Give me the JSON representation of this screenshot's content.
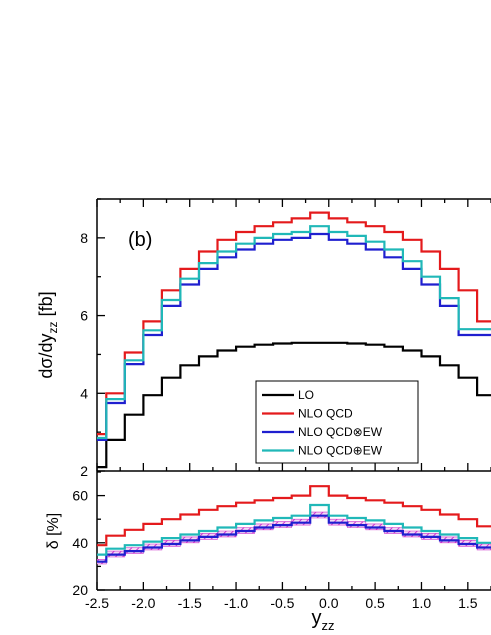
{
  "chart_data": [
    {
      "panel": "top",
      "type": "line",
      "step": true,
      "label": "(b)",
      "xlabel": "y",
      "xlabel_sub": "zz",
      "ylabel": "dσ/dy",
      "ylabel_sub": "zz",
      "ylabel_unit": "[fb]",
      "xlim": [
        -2.5,
        1.75
      ],
      "ylim": [
        2,
        9
      ],
      "xticks": [
        -2.5,
        -2.0,
        -1.5,
        -1.0,
        -0.5,
        0.0,
        0.5,
        1.0,
        1.5
      ],
      "xtick_labels": [
        "-2.5",
        "-2.0",
        "-1.5",
        "-1.0",
        "-0.5",
        "0.0",
        "0.5",
        "1.0",
        "1.5"
      ],
      "yticks": [
        2,
        4,
        6,
        8
      ],
      "ytick_labels": [
        "2",
        "4",
        "6",
        "8"
      ],
      "legend_position": "lower-center",
      "bin_edges": [
        -2.5,
        -2.4,
        -2.2,
        -2.0,
        -1.8,
        -1.6,
        -1.4,
        -1.2,
        -1.0,
        -0.8,
        -0.6,
        -0.4,
        -0.2,
        0.0,
        0.2,
        0.4,
        0.6,
        0.8,
        1.0,
        1.2,
        1.4,
        1.6,
        1.75
      ],
      "series": [
        {
          "name": "LO",
          "color": "#000000",
          "values": [
            2.1,
            2.8,
            3.45,
            3.95,
            4.4,
            4.72,
            4.95,
            5.1,
            5.2,
            5.25,
            5.28,
            5.3,
            5.3,
            5.3,
            5.28,
            5.25,
            5.2,
            5.1,
            4.95,
            4.72,
            4.4,
            3.95
          ]
        },
        {
          "name": "NLO QCD",
          "color": "#e41a1c",
          "values": [
            2.95,
            4.0,
            5.05,
            5.85,
            6.65,
            7.2,
            7.65,
            7.95,
            8.15,
            8.3,
            8.4,
            8.5,
            8.65,
            8.5,
            8.4,
            8.3,
            8.15,
            7.95,
            7.65,
            7.2,
            6.65,
            5.85
          ]
        },
        {
          "name": "NLO QCD⊗EW",
          "color": "#1f1fcf",
          "values": [
            2.8,
            3.75,
            4.75,
            5.5,
            6.25,
            6.8,
            7.2,
            7.5,
            7.7,
            7.85,
            7.95,
            8.0,
            8.1,
            7.95,
            7.85,
            7.7,
            7.5,
            7.2,
            6.8,
            6.25,
            5.5,
            5.5
          ]
        },
        {
          "name": "NLO QCD⊕EW",
          "color": "#20b8b8",
          "values": [
            2.85,
            3.85,
            4.85,
            5.62,
            6.4,
            6.95,
            7.35,
            7.65,
            7.85,
            8.0,
            8.1,
            8.15,
            8.3,
            8.15,
            8.05,
            7.9,
            7.7,
            7.4,
            7.0,
            6.45,
            5.65,
            5.65
          ]
        }
      ]
    },
    {
      "panel": "bottom",
      "type": "line",
      "step": true,
      "xlabel": "y",
      "xlabel_sub": "zz",
      "ylabel": "δ [%]",
      "xlim": [
        -2.5,
        1.75
      ],
      "ylim": [
        20,
        70
      ],
      "xticks": [
        -2.5,
        -2.0,
        -1.5,
        -1.0,
        -0.5,
        0.0,
        0.5,
        1.0,
        1.5
      ],
      "xtick_labels": [
        "-2.5",
        "-2.0",
        "-1.5",
        "-1.0",
        "-0.5",
        "0.0",
        "0.5",
        "1.0",
        "1.5"
      ],
      "yticks": [
        20,
        40,
        60
      ],
      "ytick_labels": [
        "20",
        "40",
        "60"
      ],
      "bin_edges": [
        -2.5,
        -2.4,
        -2.2,
        -2.0,
        -1.8,
        -1.6,
        -1.4,
        -1.2,
        -1.0,
        -0.8,
        -0.6,
        -0.4,
        -0.2,
        0.0,
        0.2,
        0.4,
        0.6,
        0.8,
        1.0,
        1.2,
        1.4,
        1.6,
        1.75
      ],
      "band": {
        "color": "#cc33cc",
        "lower": [
          31,
          34,
          35.5,
          37,
          38.5,
          40,
          41.5,
          42.5,
          44,
          45.5,
          46.5,
          47.5,
          50.5,
          47.5,
          46.5,
          45.5,
          44,
          42.5,
          41.5,
          40,
          38.5,
          37
        ],
        "upper": [
          33,
          36.5,
          38,
          39.5,
          41,
          42.5,
          44,
          45,
          46.5,
          48,
          49,
          50,
          53,
          50,
          49,
          48,
          46.5,
          45,
          44,
          42.5,
          41,
          39.5
        ]
      },
      "series": [
        {
          "name": "NLO QCD",
          "color": "#e41a1c",
          "values": [
            39,
            43,
            45.5,
            48,
            50,
            52,
            54,
            55.5,
            57,
            58,
            59,
            60,
            64,
            60,
            59,
            58,
            57,
            55.5,
            54,
            52,
            50,
            47
          ]
        },
        {
          "name": "NLO QCD⊗EW",
          "color": "#1f1fcf",
          "values": [
            32,
            35,
            36.5,
            38,
            39.5,
            41,
            42.5,
            43.5,
            45,
            46.5,
            47.5,
            48.5,
            51.5,
            48.5,
            47.5,
            46.5,
            45,
            43.5,
            42.5,
            41,
            39.5,
            38
          ]
        },
        {
          "name": "NLO QCD⊕EW",
          "color": "#20b8b8",
          "values": [
            35,
            37.5,
            39,
            40.5,
            42,
            43.5,
            45,
            46.5,
            48,
            49.5,
            50.5,
            51.5,
            56,
            51.5,
            50.5,
            49.5,
            48,
            46.5,
            45,
            43.5,
            42,
            40
          ]
        }
      ]
    }
  ]
}
